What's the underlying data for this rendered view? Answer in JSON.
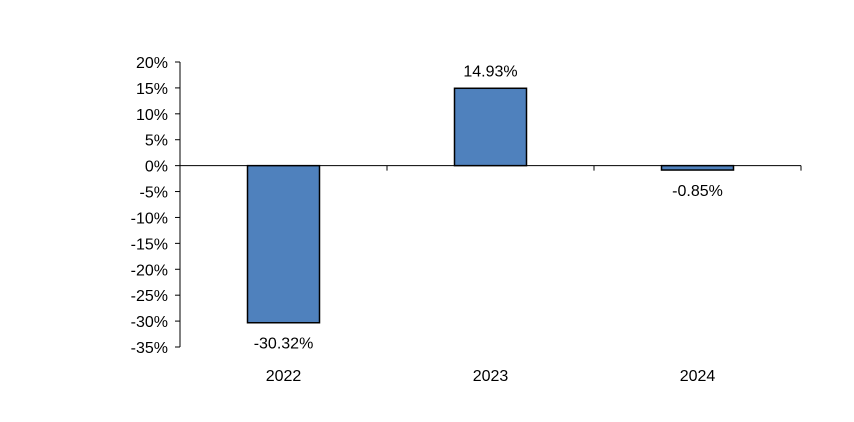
{
  "chart_data": {
    "type": "bar",
    "categories": [
      "2022",
      "2023",
      "2024"
    ],
    "values": [
      -30.32,
      14.93,
      -0.85
    ],
    "data_labels": [
      "-30.32%",
      "14.93%",
      "-0.85%"
    ],
    "title": "",
    "xlabel": "",
    "ylabel": "",
    "ylim": [
      -35,
      20
    ],
    "yticks": [
      20,
      15,
      10,
      5,
      0,
      -5,
      -10,
      -15,
      -20,
      -25,
      -30,
      -35
    ],
    "ytick_labels": [
      "20%",
      "15%",
      "10%",
      "5%",
      "0%",
      "-5%",
      "-10%",
      "-15%",
      "-20%",
      "-25%",
      "-30%",
      "-35%"
    ],
    "grid": false,
    "legend": "none",
    "colors": {
      "bar": "#4f81bd",
      "bar_edge": "#000000",
      "axis": "#000000"
    }
  }
}
